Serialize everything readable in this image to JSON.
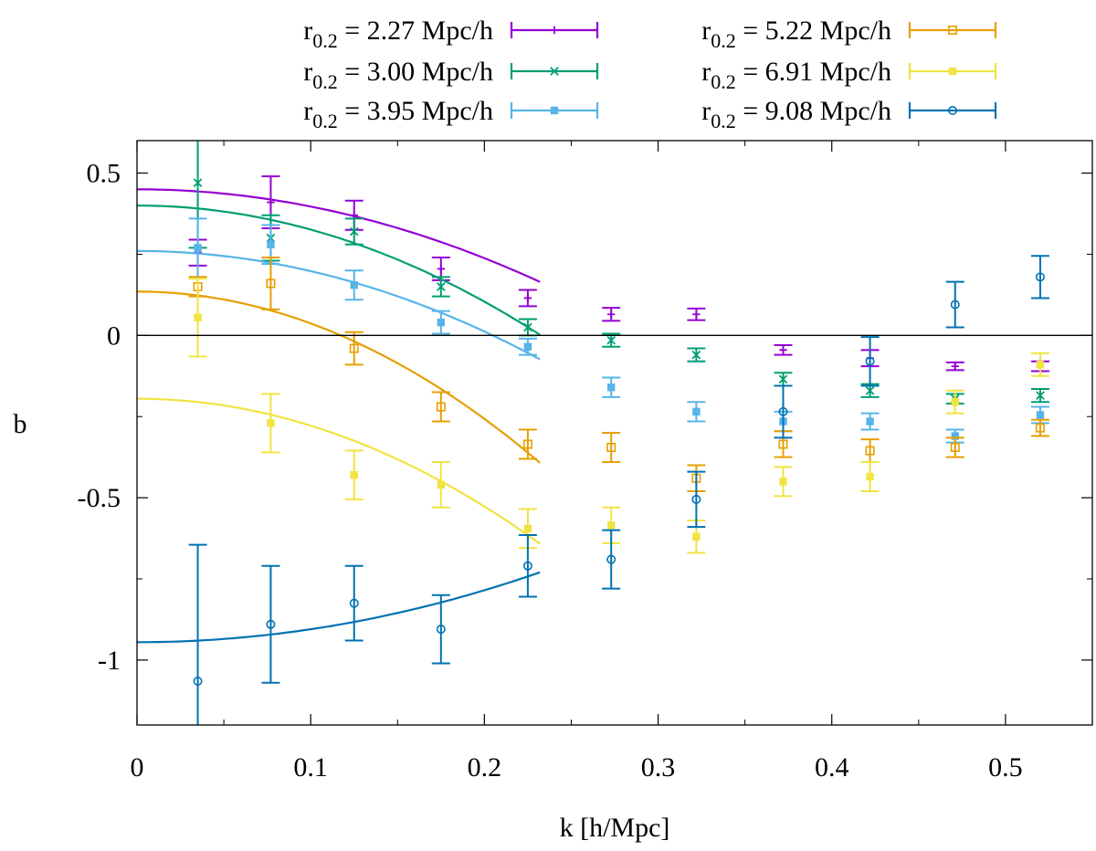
{
  "chart_data": {
    "type": "scatter",
    "title": "",
    "xlabel": "k [h/Mpc]",
    "ylabel": "b",
    "xlim": [
      0,
      0.55
    ],
    "ylim": [
      -1.2,
      0.6
    ],
    "xticks": [
      0,
      0.1,
      0.2,
      0.3,
      0.4,
      0.5
    ],
    "xtick_labels": [
      "0",
      "0.1",
      "0.2",
      "0.3",
      "0.4",
      "0.5"
    ],
    "yticks": [
      -1,
      -0.5,
      0,
      0.5
    ],
    "ytick_labels": [
      "-1",
      "-0.5",
      "0",
      "0.5"
    ],
    "grid": false,
    "legend_position": "top",
    "legend_prefix": "r",
    "legend_subscript": "0.2",
    "x": [
      0.035,
      0.077,
      0.125,
      0.175,
      0.225,
      0.273,
      0.322,
      0.372,
      0.422,
      0.471,
      0.52
    ],
    "fit_x_max": 0.232,
    "series": [
      {
        "name": "2.27 Mpc/h",
        "color": "#9400d3",
        "marker": "plus",
        "y": [
          0.255,
          0.41,
          0.37,
          0.205,
          0.115,
          0.065,
          0.065,
          -0.045,
          -0.07,
          -0.095,
          -0.095
        ],
        "err": [
          0.04,
          0.08,
          0.045,
          0.035,
          0.025,
          0.02,
          0.018,
          0.015,
          0.025,
          0.012,
          0.015
        ],
        "fit": [
          0.45,
          -5.3
        ]
      },
      {
        "name": "3.00 Mpc/h",
        "color": "#009e73",
        "marker": "cross",
        "y": [
          0.47,
          0.3,
          0.32,
          0.15,
          0.025,
          -0.015,
          -0.06,
          -0.135,
          -0.17,
          -0.195,
          -0.185
        ],
        "err": [
          0.2,
          0.07,
          0.04,
          0.03,
          0.025,
          0.02,
          0.02,
          0.02,
          0.02,
          0.015,
          0.02
        ],
        "fit": [
          0.4,
          -7.4
        ]
      },
      {
        "name": "3.95 Mpc/h",
        "color": "#56b4e9",
        "marker": "square-filled",
        "y": [
          0.27,
          0.28,
          0.155,
          0.04,
          -0.035,
          -0.16,
          -0.235,
          -0.265,
          -0.265,
          -0.31,
          -0.245
        ],
        "err": [
          0.09,
          0.06,
          0.045,
          0.035,
          0.025,
          0.03,
          0.03,
          0.03,
          0.025,
          0.02,
          0.025
        ],
        "fit": [
          0.26,
          -6.2
        ]
      },
      {
        "name": "5.22 Mpc/h",
        "color": "#e69f00",
        "marker": "square-open",
        "y": [
          0.15,
          0.16,
          -0.04,
          -0.22,
          -0.335,
          -0.345,
          -0.44,
          -0.335,
          -0.355,
          -0.345,
          -0.285
        ],
        "err": [
          0.03,
          0.08,
          0.05,
          0.045,
          0.045,
          0.045,
          0.04,
          0.04,
          0.035,
          0.03,
          0.025
        ],
        "fit": [
          0.135,
          -9.8
        ]
      },
      {
        "name": "6.91 Mpc/h",
        "color": "#f0e442",
        "marker": "square-filled",
        "y": [
          0.055,
          -0.27,
          -0.43,
          -0.46,
          -0.595,
          -0.585,
          -0.62,
          -0.45,
          -0.435,
          -0.205,
          -0.09
        ],
        "err": [
          0.12,
          0.09,
          0.075,
          0.07,
          0.06,
          0.055,
          0.05,
          0.045,
          0.045,
          0.035,
          0.035
        ],
        "fit": [
          -0.195,
          -8.3
        ]
      },
      {
        "name": "9.08 Mpc/h",
        "color": "#0072b2",
        "marker": "circle-open",
        "y": [
          -1.065,
          -0.89,
          -0.825,
          -0.905,
          -0.71,
          -0.69,
          -0.505,
          -0.235,
          -0.08,
          0.095,
          0.18
        ],
        "err": [
          0.42,
          0.18,
          0.115,
          0.105,
          0.095,
          0.09,
          0.085,
          0.08,
          0.075,
          0.07,
          0.065
        ],
        "fit": [
          -0.945,
          4.0
        ]
      }
    ]
  }
}
